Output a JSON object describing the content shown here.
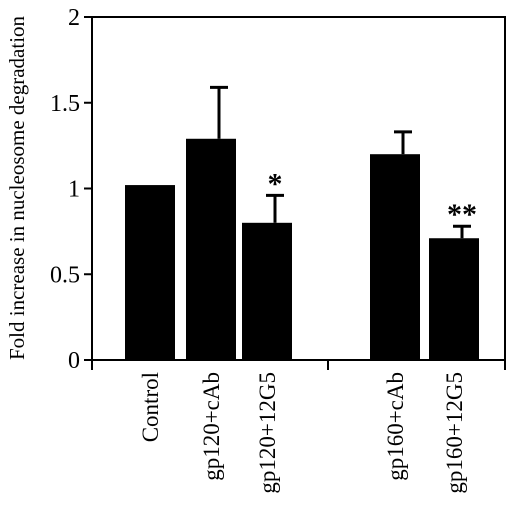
{
  "chart_data": {
    "type": "bar",
    "categories": [
      "Control",
      "gp120+cAb",
      "gp120+12G5",
      "gp160+cAb",
      "gp160+12G5"
    ],
    "values": [
      1.02,
      1.29,
      0.8,
      1.2,
      0.71
    ],
    "error_plus": [
      0,
      0.3,
      0.16,
      0.13,
      0.07
    ],
    "annotations": [
      "",
      "",
      "*",
      "",
      "**"
    ],
    "ylabel": "Fold increase in nucleosome degradation",
    "xlabel": "",
    "ylim": [
      0,
      2
    ],
    "yticks": [
      0,
      0.5,
      1,
      1.5,
      2
    ],
    "ytick_labels": [
      "0",
      "0.5",
      "1",
      "1.5",
      "2"
    ],
    "groups": [
      [
        0,
        1,
        2
      ],
      [
        3,
        4
      ]
    ],
    "bar_color": "#000000",
    "grid": false
  }
}
